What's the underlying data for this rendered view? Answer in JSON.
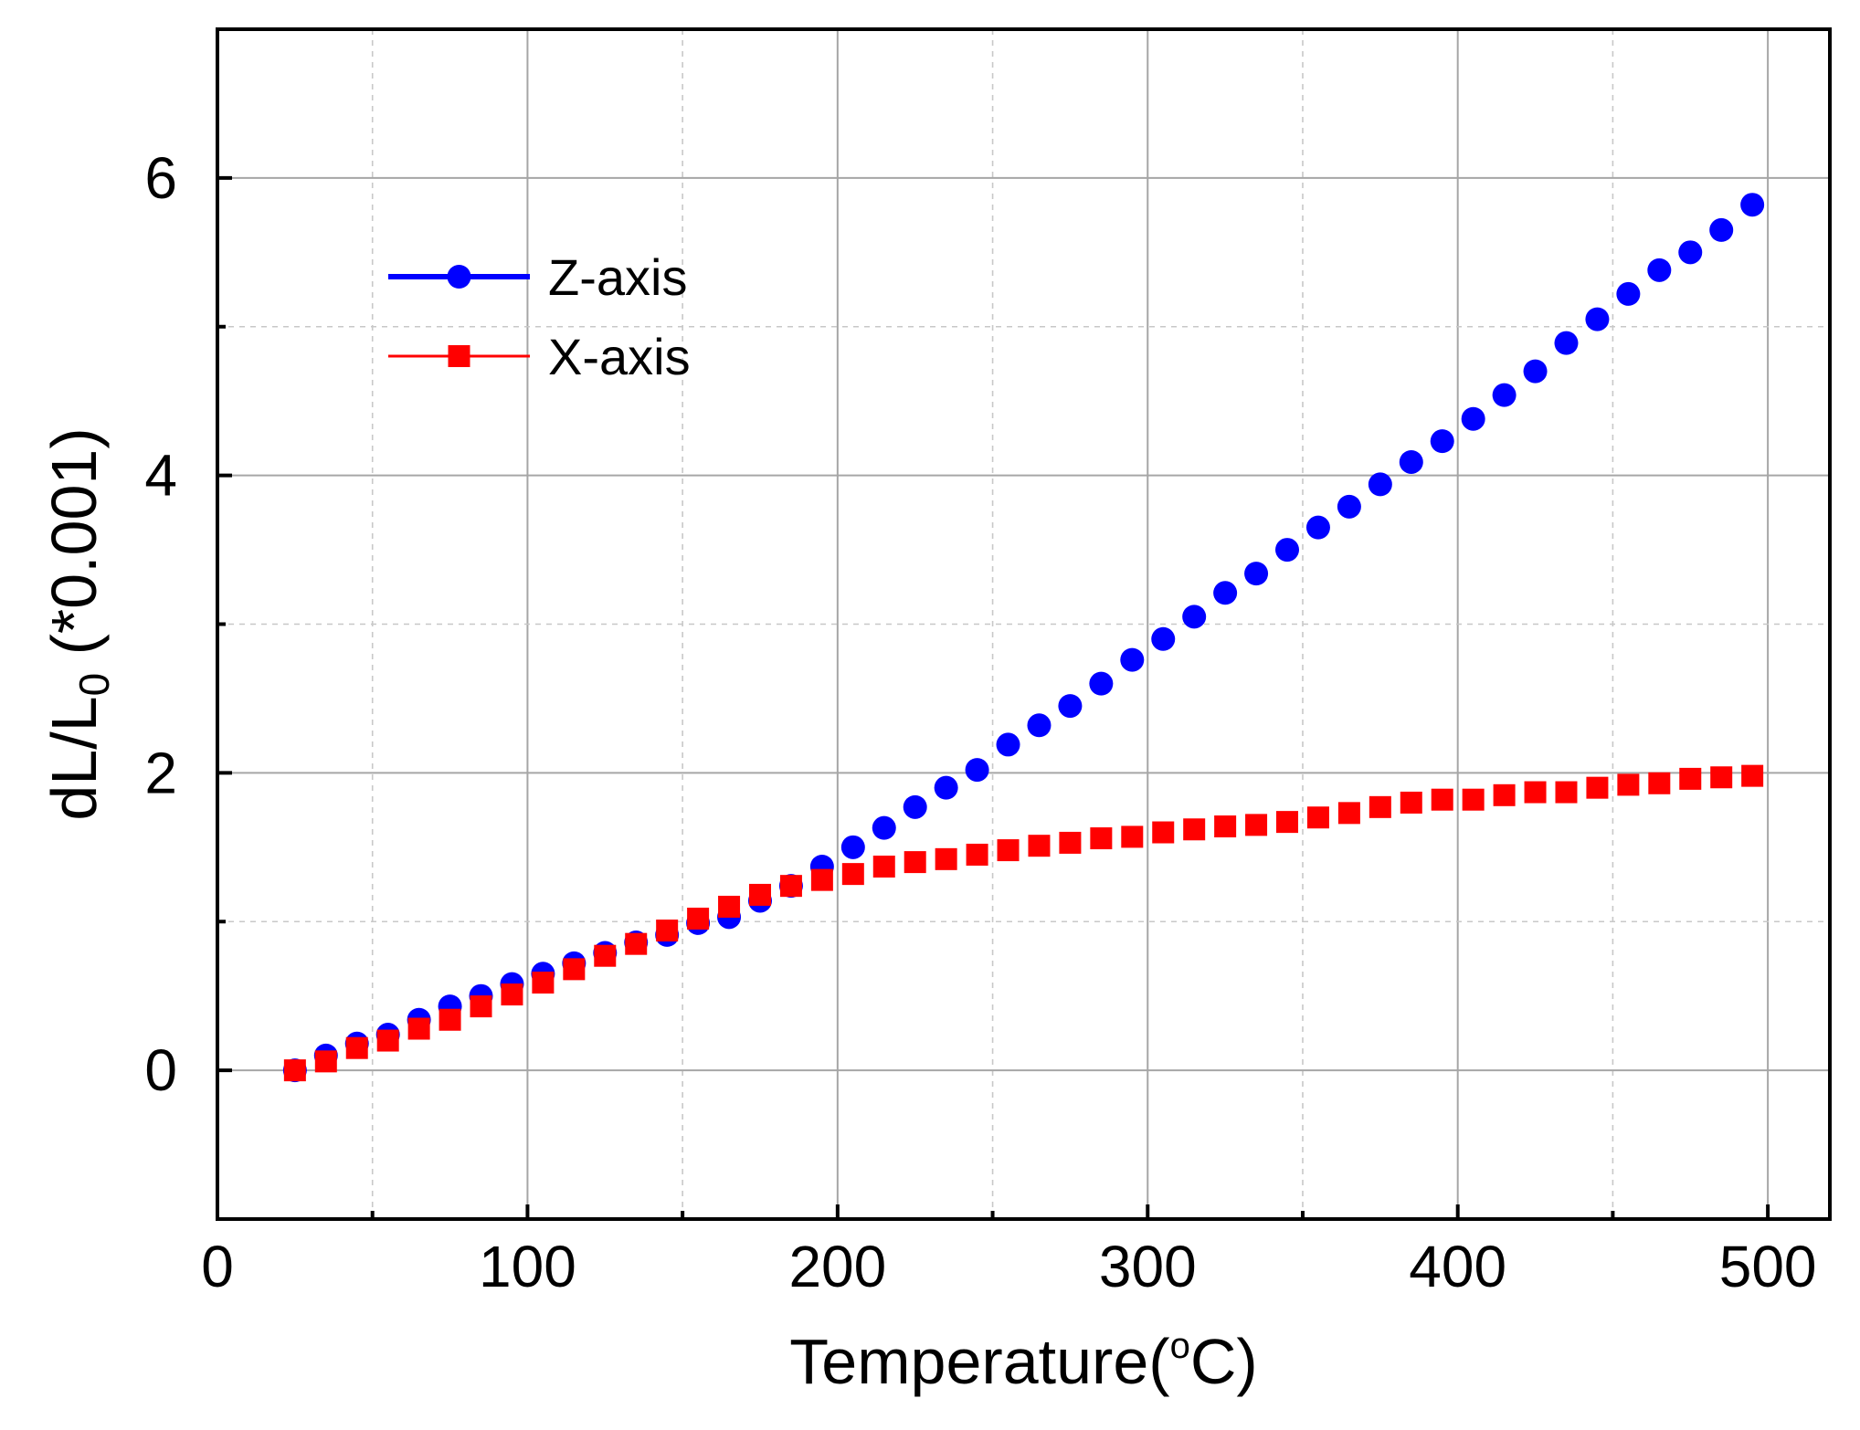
{
  "chart_data": {
    "type": "scatter",
    "title": "",
    "xlabel": "Temperature(",
    "xlabel_degree": "o",
    "xlabel_suffix": "C)",
    "ylabel_main": "dL/L",
    "ylabel_sub": "0",
    "ylabel_suffix": " (*0.001)",
    "xlim": [
      0,
      520
    ],
    "ylim": [
      -1,
      7
    ],
    "x_ticks": [
      0,
      100,
      200,
      300,
      400,
      500
    ],
    "x_tick_labels": [
      "0",
      "100",
      "200",
      "300",
      "400",
      "500"
    ],
    "y_ticks": [
      0,
      2,
      4,
      6
    ],
    "y_tick_labels": [
      "0",
      "2",
      "4",
      "6"
    ],
    "grid": true,
    "legend_position": "top-left",
    "series": [
      {
        "name": "Z-axis",
        "color": "#0000ff",
        "marker": "circle",
        "x": [
          25,
          35,
          45,
          55,
          65,
          75,
          85,
          95,
          105,
          115,
          125,
          135,
          145,
          155,
          165,
          175,
          185,
          195,
          205,
          215,
          225,
          235,
          245,
          255,
          265,
          275,
          285,
          295,
          305,
          315,
          325,
          335,
          345,
          355,
          365,
          375,
          385,
          395,
          405,
          415,
          425,
          435,
          445,
          455,
          465,
          475,
          485,
          495
        ],
        "y": [
          0.0,
          0.1,
          0.18,
          0.24,
          0.34,
          0.43,
          0.5,
          0.58,
          0.65,
          0.72,
          0.79,
          0.86,
          0.91,
          0.99,
          1.03,
          1.14,
          1.24,
          1.37,
          1.5,
          1.63,
          1.77,
          1.9,
          2.02,
          2.19,
          2.32,
          2.45,
          2.6,
          2.76,
          2.9,
          3.05,
          3.21,
          3.34,
          3.5,
          3.65,
          3.79,
          3.94,
          4.09,
          4.23,
          4.38,
          4.54,
          4.7,
          4.89,
          5.05,
          5.22,
          5.38,
          5.5,
          5.65,
          5.82
        ]
      },
      {
        "name": "X-axis",
        "color": "#ff0000",
        "marker": "square",
        "x": [
          25,
          35,
          45,
          55,
          65,
          75,
          85,
          95,
          105,
          115,
          125,
          135,
          145,
          155,
          165,
          175,
          185,
          195,
          205,
          215,
          225,
          235,
          245,
          255,
          265,
          275,
          285,
          295,
          305,
          315,
          325,
          335,
          345,
          355,
          365,
          375,
          385,
          395,
          405,
          415,
          425,
          435,
          445,
          455,
          465,
          475,
          485,
          495
        ],
        "y": [
          0.0,
          0.06,
          0.15,
          0.2,
          0.28,
          0.34,
          0.43,
          0.51,
          0.59,
          0.68,
          0.77,
          0.85,
          0.94,
          1.02,
          1.1,
          1.18,
          1.24,
          1.28,
          1.32,
          1.37,
          1.4,
          1.42,
          1.45,
          1.48,
          1.51,
          1.53,
          1.56,
          1.57,
          1.6,
          1.62,
          1.64,
          1.65,
          1.67,
          1.7,
          1.73,
          1.77,
          1.8,
          1.82,
          1.82,
          1.85,
          1.87,
          1.87,
          1.9,
          1.92,
          1.93,
          1.96,
          1.97,
          1.98
        ]
      }
    ]
  }
}
